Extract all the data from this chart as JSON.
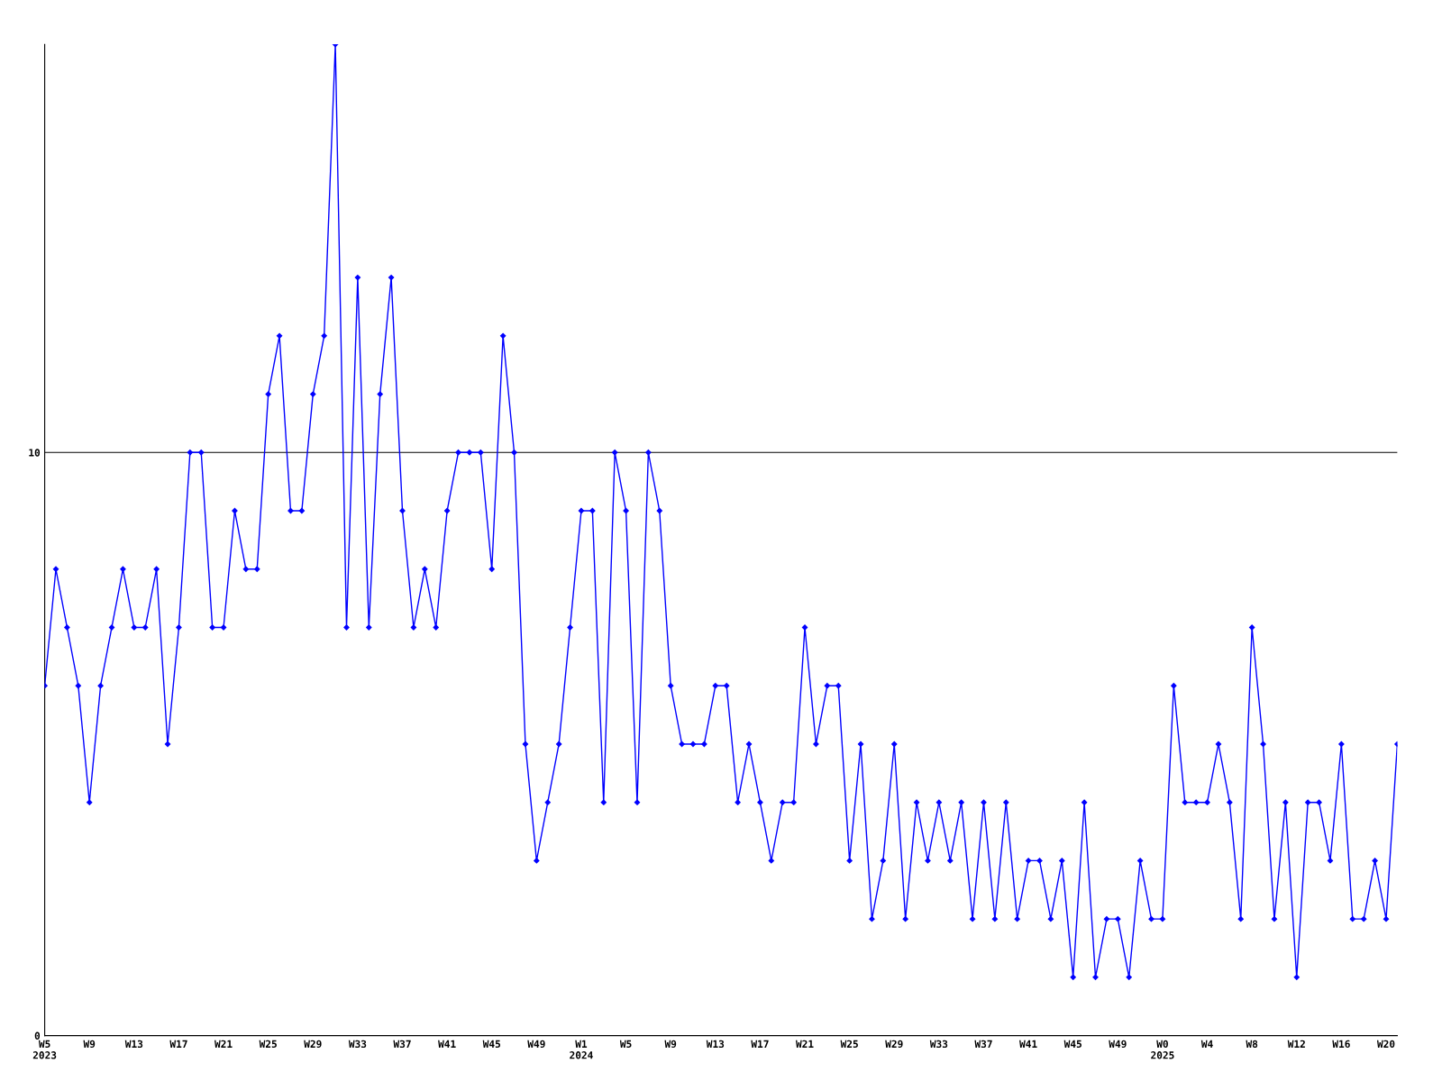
{
  "chart_data": {
    "type": "line",
    "categories": [
      "W5\n2023",
      null,
      null,
      null,
      "W9",
      null,
      null,
      null,
      "W13",
      null,
      null,
      null,
      "W17",
      null,
      null,
      null,
      "W21",
      null,
      null,
      null,
      "W25",
      null,
      null,
      null,
      "W29",
      null,
      null,
      null,
      "W33",
      null,
      null,
      null,
      "W37",
      null,
      null,
      null,
      "W41",
      null,
      null,
      null,
      "W45",
      null,
      null,
      null,
      "W49",
      null,
      null,
      null,
      "W1\n2024",
      null,
      null,
      null,
      "W5",
      null,
      null,
      null,
      "W9",
      null,
      null,
      null,
      "W13",
      null,
      null,
      null,
      "W17",
      null,
      null,
      null,
      "W21",
      null,
      null,
      null,
      "W25",
      null,
      null,
      null,
      "W29",
      null,
      null,
      null,
      "W33",
      null,
      null,
      null,
      "W37",
      null,
      null,
      null,
      "W41",
      null,
      null,
      null,
      "W45",
      null,
      null,
      null,
      "W49",
      null,
      null,
      null,
      "W0\n2025",
      null,
      null,
      null,
      "W4",
      null,
      null,
      null,
      "W8",
      null,
      null,
      null,
      "W12",
      null,
      null,
      null,
      "W16",
      null,
      null,
      null,
      "W20",
      null
    ],
    "series": [
      {
        "color": "#0000ff",
        "values": [
          6,
          8,
          7,
          6,
          4,
          6,
          7,
          8,
          7,
          7,
          8,
          5,
          7,
          10,
          10,
          7,
          7,
          9,
          8,
          8,
          11,
          12,
          9,
          9,
          11,
          12,
          17,
          7,
          13,
          7,
          11,
          13,
          9,
          7,
          8,
          7,
          9,
          10,
          10,
          10,
          8,
          12,
          10,
          5,
          3,
          4,
          5,
          7,
          9,
          9,
          4,
          10,
          9,
          4,
          10,
          9,
          6,
          5,
          5,
          5,
          6,
          6,
          4,
          5,
          4,
          3,
          4,
          4,
          7,
          5,
          6,
          6,
          3,
          5,
          2,
          3,
          5,
          2,
          4,
          3,
          4,
          3,
          4,
          2,
          4,
          2,
          4,
          2,
          3,
          3,
          2,
          3,
          1,
          4,
          1,
          2,
          2,
          1,
          3,
          2,
          2,
          6,
          4,
          4,
          4,
          5,
          4,
          2,
          7,
          5,
          2,
          4,
          1,
          4,
          4,
          3,
          5,
          2,
          2,
          3,
          2,
          5
        ]
      }
    ],
    "ylim": [
      0,
      17
    ],
    "yticks": [
      0,
      10
    ],
    "grid": "y",
    "marker": "diamond",
    "line_style": "solid"
  }
}
